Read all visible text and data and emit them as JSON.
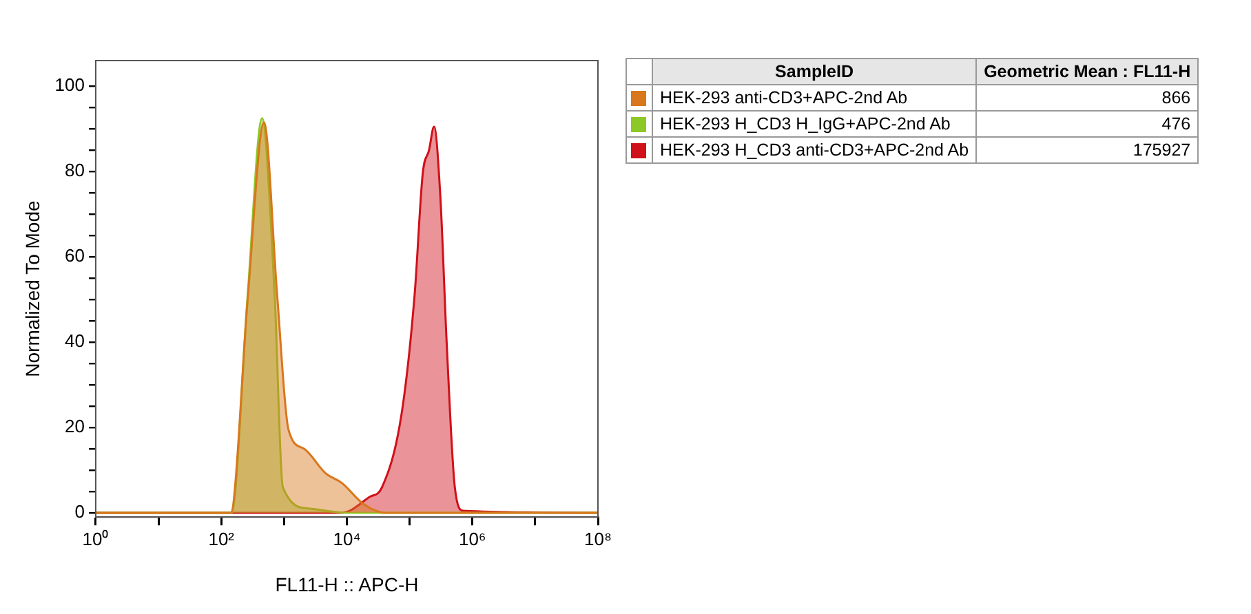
{
  "chart_data": {
    "type": "area",
    "xlabel": "FL11-H :: APC-H",
    "ylabel": "Normalized To Mode",
    "legend_title": "SampleID",
    "log": "x",
    "xlim": [
      1,
      100000000
    ],
    "xticks": [
      {
        "value": 1,
        "label": "10⁰"
      },
      {
        "value": 10,
        "label": null
      },
      {
        "value": 100,
        "label": "10²"
      },
      {
        "value": 1000,
        "label": null
      },
      {
        "value": 10000,
        "label": "10⁴"
      },
      {
        "value": 100000,
        "label": null
      },
      {
        "value": 1000000,
        "label": "10⁶"
      },
      {
        "value": 10000000,
        "label": null
      },
      {
        "value": 100000000,
        "label": "10⁸"
      }
    ],
    "ylim": [
      -1,
      106
    ],
    "yticks": [
      0,
      {
        "value": 5,
        "label": null
      },
      {
        "value": 10,
        "label": null
      },
      {
        "value": 15,
        "label": null
      },
      20,
      {
        "value": 25,
        "label": null
      },
      {
        "value": 30,
        "label": null
      },
      {
        "value": 35,
        "label": null
      },
      40,
      {
        "value": 45,
        "label": null
      },
      {
        "value": 50,
        "label": null
      },
      {
        "value": 55,
        "label": null
      },
      60,
      {
        "value": 65,
        "label": null
      },
      {
        "value": 70,
        "label": null
      },
      {
        "value": 75,
        "label": null
      },
      80,
      {
        "value": 85,
        "label": null
      },
      {
        "value": 90,
        "label": null
      },
      {
        "value": 95,
        "label": null
      },
      100
    ],
    "grid": false,
    "legend": "right",
    "marker": "none",
    "annotations": [
      "Geometric Mean : FL11-H",
      "866",
      "476",
      "175927"
    ],
    "series": [
      {
        "name": "HEK-293 anti-CD3+APC-2nd Ab",
        "color": "#d9771c",
        "x": [
          1,
          141,
          263,
          479,
          776,
          1175,
          2090,
          4570,
          8320,
          18600,
          40700,
          100000000
        ],
        "values": [
          0,
          0,
          50,
          91.5,
          51,
          19.5,
          15,
          9.3,
          7,
          2,
          0,
          0
        ]
      },
      {
        "name": "HEK-293 H_CD3 H_IgG+APC-2nd Ab",
        "color": "#8cc928",
        "x": [
          1,
          145,
          263,
          447,
          708,
          955,
          2500,
          10000,
          100000000
        ],
        "values": [
          0,
          0,
          51,
          92.5,
          51,
          6,
          1,
          0,
          0
        ]
      },
      {
        "name": "HEK-293 H_CD3 anti-CD3+APC-2nd Ab",
        "color": "#d0101a",
        "x": [
          1,
          8320,
          22900,
          36300,
          74100,
          120000,
          162000,
          204000,
          245000,
          309000,
          389000,
          525000,
          708000,
          100000000
        ],
        "values": [
          0,
          0,
          3.7,
          6,
          23,
          51,
          79.6,
          85,
          90.5,
          74,
          40,
          6,
          0.5,
          0
        ]
      }
    ]
  }
}
